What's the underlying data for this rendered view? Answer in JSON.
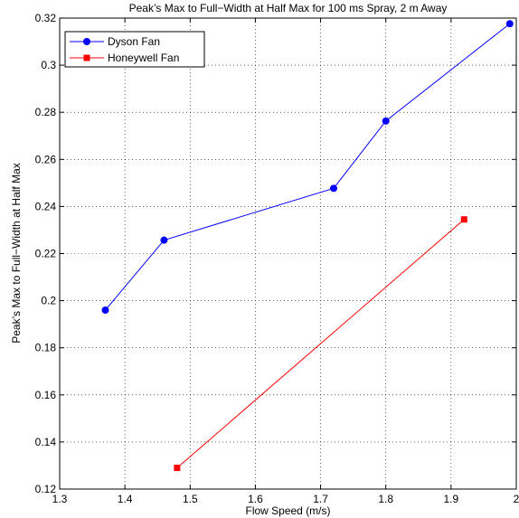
{
  "chart_data": {
    "type": "line",
    "title": "Peak’s Max to Full−Width at Half Max for 100 ms Spray, 2 m Away",
    "xlabel": "Flow Speed (m/s)",
    "ylabel": "Peak’s Max to Full−Width at Half Max",
    "xlim": [
      1.3,
      2.0
    ],
    "ylim": [
      0.12,
      0.32
    ],
    "x_ticks": [
      1.3,
      1.4,
      1.5,
      1.6,
      1.7,
      1.8,
      1.9,
      2.0
    ],
    "x_tick_labels": [
      "1.3",
      "1.4",
      "1.5",
      "1.6",
      "1.7",
      "1.8",
      "1.9",
      "2"
    ],
    "y_ticks": [
      0.12,
      0.14,
      0.16,
      0.18,
      0.2,
      0.22,
      0.24,
      0.26,
      0.28,
      0.3,
      0.32
    ],
    "y_tick_labels": [
      "0.12",
      "0.14",
      "0.16",
      "0.18",
      "0.2",
      "0.22",
      "0.24",
      "0.26",
      "0.28",
      "0.3",
      "0.32"
    ],
    "grid": true,
    "legend_position": "top-left",
    "series": [
      {
        "name": "Dyson Fan",
        "color": "#0000ff",
        "marker": "circle",
        "x": [
          1.37,
          1.46,
          1.72,
          1.8,
          1.99
        ],
        "y": [
          0.196,
          0.2257,
          0.2477,
          0.2763,
          0.3176
        ]
      },
      {
        "name": "Honeywell Fan",
        "color": "#ff0000",
        "marker": "square",
        "x": [
          1.48,
          1.92
        ],
        "y": [
          0.129,
          0.2345
        ]
      }
    ]
  }
}
